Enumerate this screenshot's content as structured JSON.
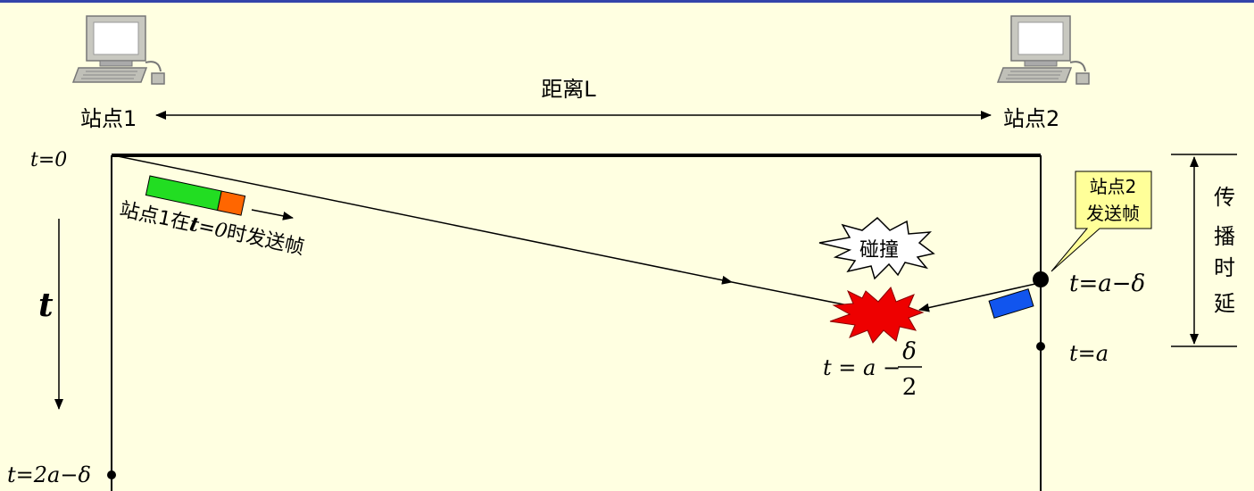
{
  "stations": {
    "left": {
      "label": "站点1",
      "icon": "computer-icon"
    },
    "right": {
      "label": "站点2",
      "icon": "computer-icon"
    }
  },
  "distance_label": "距离L",
  "time_axis_label": "t",
  "frame_note": {
    "prefix": "站点1在",
    "t": "t",
    "eq": "=",
    "zero": "0",
    "suffix": "时发送帧"
  },
  "callout": {
    "line1": "站点2",
    "line2": "发送帧"
  },
  "collision_label": "碰撞",
  "prop_delay": [
    "传",
    "播",
    "时",
    "延"
  ],
  "times": {
    "t0": "t=0",
    "t_a_minus_delta": "t=a−δ",
    "t_a": "t=a",
    "t_2a_minus_delta": "t=2a−δ",
    "collision": {
      "lhs": "t = a −",
      "num": "δ",
      "den": "2"
    }
  },
  "colors": {
    "background": "#FFFFE1",
    "frame_green": "#22DD22",
    "frame_orange": "#FF6600",
    "frame_blue": "#1155EE",
    "collision_red": "#EE0000",
    "callout_fill": "#FFFF99",
    "top_rule": "#3344AA"
  }
}
